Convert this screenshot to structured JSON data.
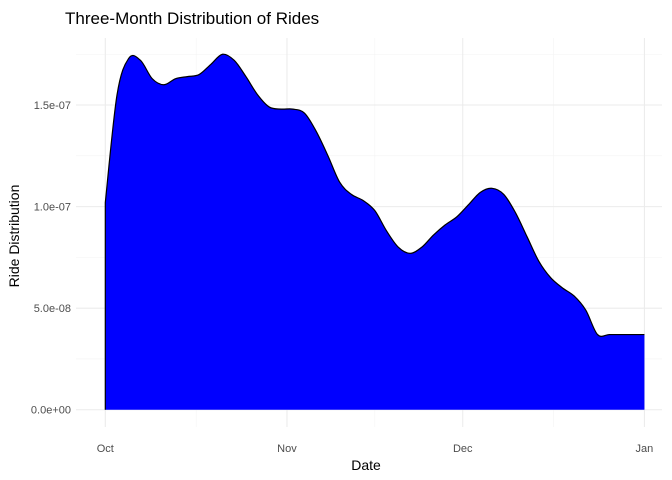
{
  "chart_data": {
    "type": "area",
    "title": "Three-Month Distribution of Rides",
    "xlabel": "Date",
    "ylabel": "Ride Distribution",
    "x_tick_labels": [
      "Oct",
      "Nov",
      "Dec",
      "Jan"
    ],
    "y_tick_labels": [
      "0.0e+00",
      "5.0e-08",
      "1.0e-07",
      "1.5e-07"
    ],
    "y_ticks": [
      0,
      5e-08,
      1e-07,
      1.5e-07
    ],
    "x_ticks": [
      "2023-10-01",
      "2023-11-01",
      "2023-12-01",
      "2024-01-01"
    ],
    "xlim": [
      "2023-09-26",
      "2024-01-04"
    ],
    "ylim": [
      -8.5e-09,
      1.83e-07
    ],
    "grid": true,
    "fill_color": "#0000ff",
    "outline_color": "#000000",
    "series": [
      {
        "x": [
          "2023-10-01",
          "2023-10-03",
          "2023-10-05",
          "2023-10-07",
          "2023-10-09",
          "2023-10-11",
          "2023-10-13",
          "2023-10-15",
          "2023-10-17",
          "2023-10-19",
          "2023-10-21",
          "2023-10-23",
          "2023-10-25",
          "2023-10-27",
          "2023-10-29",
          "2023-10-31",
          "2023-11-02",
          "2023-11-04",
          "2023-11-06",
          "2023-11-08",
          "2023-11-10",
          "2023-11-12",
          "2023-11-14",
          "2023-11-16",
          "2023-11-18",
          "2023-11-20",
          "2023-11-22",
          "2023-11-24",
          "2023-11-26",
          "2023-11-28",
          "2023-11-30",
          "2023-12-02",
          "2023-12-04",
          "2023-12-06",
          "2023-12-08",
          "2023-12-10",
          "2023-12-12",
          "2023-12-14",
          "2023-12-16",
          "2023-12-18",
          "2023-12-20",
          "2023-12-22",
          "2023-12-24",
          "2023-12-26",
          "2023-12-28",
          "2023-12-30",
          "2024-01-01"
        ],
        "y": [
          1.02e-07,
          1.55e-07,
          1.73e-07,
          1.72e-07,
          1.63e-07,
          1.6e-07,
          1.63e-07,
          1.64e-07,
          1.65e-07,
          1.7e-07,
          1.75e-07,
          1.72e-07,
          1.64e-07,
          1.55e-07,
          1.49e-07,
          1.48e-07,
          1.48e-07,
          1.46e-07,
          1.37e-07,
          1.25e-07,
          1.12e-07,
          1.06e-07,
          1.03e-07,
          9.8e-08,
          8.8e-08,
          8e-08,
          7.7e-08,
          8e-08,
          8.6e-08,
          9.1e-08,
          9.5e-08,
          1.01e-07,
          1.07e-07,
          1.09e-07,
          1.06e-07,
          9.7e-08,
          8.5e-08,
          7.3e-08,
          6.5e-08,
          6e-08,
          5.6e-08,
          4.9e-08,
          3.7e-08,
          3.7e-08,
          3.7e-08,
          3.7e-08,
          3.7e-08
        ]
      }
    ]
  }
}
